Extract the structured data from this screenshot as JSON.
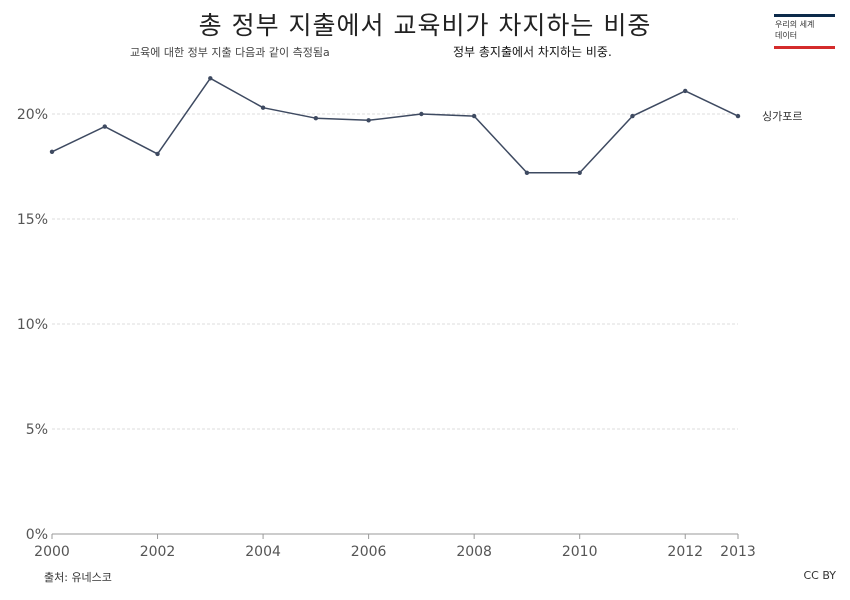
{
  "header": {
    "title": "총 정부 지출에서 교육비가 차지하는 비중",
    "subtitle": "교육에 대한 정부 지출 다음과 같이 측정됨a",
    "subtitle2": "정부 총지출에서 차지하는 비중."
  },
  "logo": {
    "line1": "우리의 세계",
    "line2": "데이터"
  },
  "footer": {
    "source": "출처: 유네스코",
    "license": "CC BY"
  },
  "colors": {
    "line": "#3e4a61",
    "grid": "#dddddd",
    "axis": "#999999"
  },
  "chart_data": {
    "type": "line",
    "title": "총 정부 지출에서 교육비가 차지하는 비중",
    "x": [
      2000,
      2001,
      2002,
      2003,
      2004,
      2005,
      2006,
      2007,
      2008,
      2009,
      2010,
      2011,
      2012,
      2013
    ],
    "series": [
      {
        "name": "싱가포르",
        "values": [
          18.2,
          19.4,
          18.1,
          21.7,
          20.3,
          19.8,
          19.7,
          20.0,
          19.9,
          17.2,
          17.2,
          19.9,
          21.1,
          19.9
        ]
      }
    ],
    "ylim": [
      0,
      22
    ],
    "yticks": [
      0,
      5,
      10,
      15,
      20
    ],
    "ytick_labels": [
      "0%",
      "5%",
      "10%",
      "15%",
      "20%"
    ],
    "xticks": [
      2000,
      2002,
      2004,
      2006,
      2008,
      2010,
      2012,
      2013
    ],
    "xtick_labels": [
      "2000",
      "2002",
      "2004",
      "2006",
      "2008",
      "2010",
      "2012",
      "2013"
    ],
    "grid": true
  }
}
